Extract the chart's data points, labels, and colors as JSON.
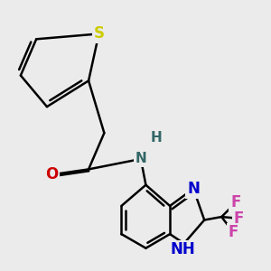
{
  "background_color": "#ebebeb",
  "bond_color": "#000000",
  "bond_width": 1.8,
  "dbo": 0.055,
  "atoms": {
    "S": {
      "color": "#cccc00",
      "fontsize": 12,
      "fontweight": "bold"
    },
    "O": {
      "color": "#cc0000",
      "fontsize": 12,
      "fontweight": "bold"
    },
    "NH_amide": {
      "color": "#336666",
      "fontsize": 11,
      "fontweight": "bold"
    },
    "H_amide": {
      "color": "#336666",
      "fontsize": 11,
      "fontweight": "bold"
    },
    "N": {
      "color": "#0000cc",
      "fontsize": 12,
      "fontweight": "bold"
    },
    "NH": {
      "color": "#0000cc",
      "fontsize": 12,
      "fontweight": "bold"
    },
    "F": {
      "color": "#cc44aa",
      "fontsize": 12,
      "fontweight": "bold"
    }
  },
  "figsize": [
    3.0,
    3.0
  ],
  "dpi": 100
}
